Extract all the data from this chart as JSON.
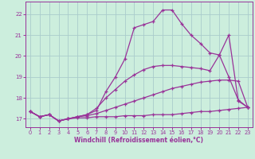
{
  "xlabel": "Windchill (Refroidissement éolien,°C)",
  "bg_color": "#cceedd",
  "grid_color": "#aacccc",
  "line_color": "#993399",
  "xlim": [
    -0.5,
    23.5
  ],
  "ylim": [
    16.6,
    22.6
  ],
  "xticks": [
    0,
    1,
    2,
    3,
    4,
    5,
    6,
    7,
    8,
    9,
    10,
    11,
    12,
    13,
    14,
    15,
    16,
    17,
    18,
    19,
    20,
    21,
    22,
    23
  ],
  "yticks": [
    17,
    18,
    19,
    20,
    21,
    22
  ],
  "lines": [
    {
      "x": [
        0,
        1,
        2,
        3,
        4,
        5,
        6,
        7,
        8,
        9,
        10,
        11,
        12,
        13,
        14,
        15,
        16,
        17,
        18,
        19,
        20,
        21,
        22,
        23
      ],
      "y": [
        17.35,
        17.1,
        17.2,
        16.9,
        17.0,
        17.05,
        17.05,
        17.1,
        17.1,
        17.1,
        17.15,
        17.15,
        17.15,
        17.2,
        17.2,
        17.2,
        17.25,
        17.3,
        17.35,
        17.35,
        17.4,
        17.45,
        17.5,
        17.55
      ]
    },
    {
      "x": [
        0,
        1,
        2,
        3,
        4,
        5,
        6,
        7,
        8,
        9,
        10,
        11,
        12,
        13,
        14,
        15,
        16,
        17,
        18,
        19,
        20,
        21,
        22,
        23
      ],
      "y": [
        17.35,
        17.1,
        17.2,
        16.9,
        17.0,
        17.1,
        17.15,
        17.25,
        17.4,
        17.55,
        17.7,
        17.85,
        18.0,
        18.15,
        18.3,
        18.45,
        18.55,
        18.65,
        18.75,
        18.8,
        18.85,
        18.85,
        18.8,
        17.55
      ]
    },
    {
      "x": [
        0,
        1,
        2,
        3,
        4,
        5,
        6,
        7,
        8,
        9,
        10,
        11,
        12,
        13,
        14,
        15,
        16,
        17,
        18,
        19,
        20,
        21,
        22,
        23
      ],
      "y": [
        17.35,
        17.1,
        17.2,
        16.9,
        17.0,
        17.1,
        17.2,
        17.5,
        18.0,
        18.4,
        18.8,
        19.1,
        19.35,
        19.5,
        19.55,
        19.55,
        19.5,
        19.45,
        19.4,
        19.3,
        20.05,
        19.0,
        17.9,
        17.55
      ]
    },
    {
      "x": [
        0,
        1,
        2,
        3,
        4,
        5,
        6,
        7,
        8,
        9,
        10,
        11,
        12,
        13,
        14,
        15,
        16,
        17,
        18,
        19,
        20,
        21,
        22,
        23
      ],
      "y": [
        17.35,
        17.1,
        17.2,
        16.9,
        17.0,
        17.1,
        17.2,
        17.4,
        18.3,
        19.0,
        19.85,
        21.35,
        21.5,
        21.65,
        22.2,
        22.2,
        21.55,
        21.0,
        20.6,
        20.15,
        20.05,
        21.0,
        17.85,
        17.55
      ]
    }
  ]
}
